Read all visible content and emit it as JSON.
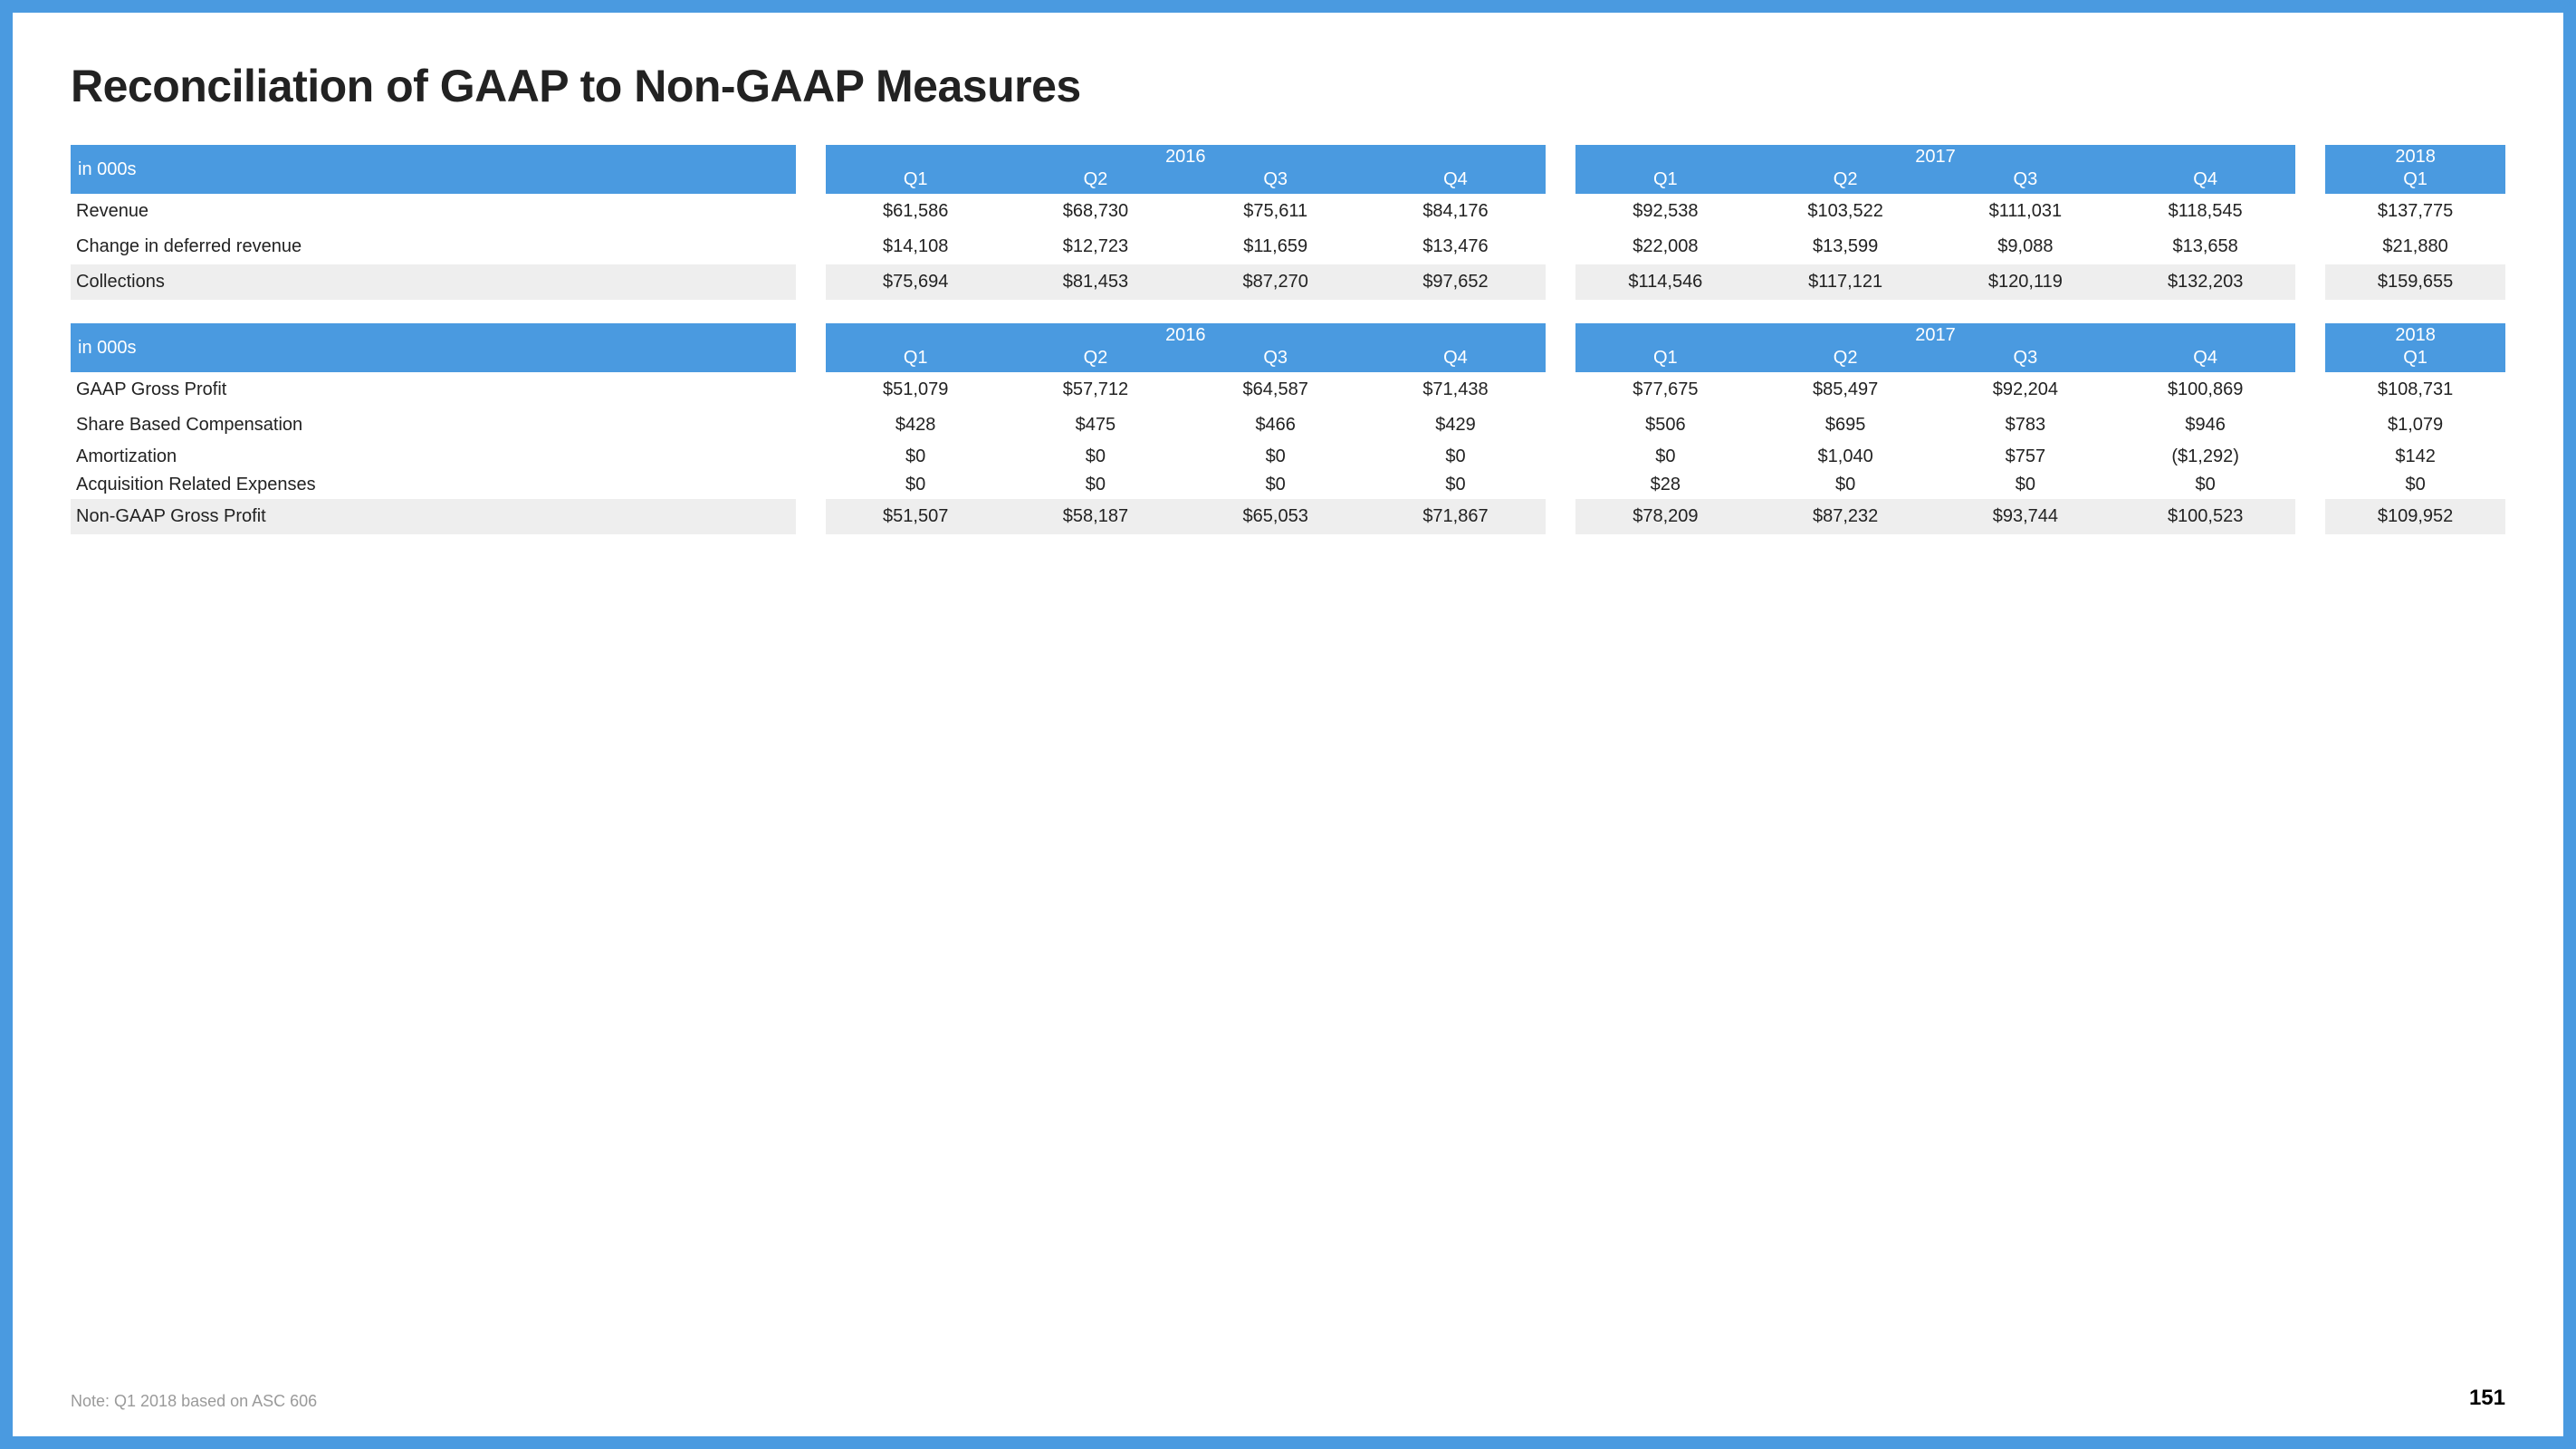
{
  "title": "Reconciliation of GAAP to Non-GAAP Measures",
  "colors": {
    "frame": "#4a9ae0",
    "header_bg": "#4a9ae0",
    "header_text": "#ffffff",
    "row_text": "#222222",
    "shade_bg": "#eeeeee",
    "note_text": "#9a9a9a",
    "page_bg": "#ffffff"
  },
  "typography": {
    "title_fontsize_pt": 38,
    "header_fontsize_pt": 15,
    "body_fontsize_pt": 15,
    "note_fontsize_pt": 13,
    "pagenum_fontsize_pt": 18,
    "title_weight": 700
  },
  "year_groups": [
    {
      "label": "2016",
      "quarters": [
        "Q1",
        "Q2",
        "Q3",
        "Q4"
      ]
    },
    {
      "label": "2017",
      "quarters": [
        "Q1",
        "Q2",
        "Q3",
        "Q4"
      ]
    },
    {
      "label": "2018",
      "quarters": [
        "Q1"
      ]
    }
  ],
  "table1": {
    "unit_label": "in 000s",
    "rows": [
      {
        "label": "Revenue",
        "shaded": false,
        "values": [
          "$61,586",
          "$68,730",
          "$75,611",
          "$84,176",
          "$92,538",
          "$103,522",
          "$111,031",
          "$118,545",
          "$137,775"
        ]
      },
      {
        "label": "Change in deferred revenue",
        "shaded": false,
        "values": [
          "$14,108",
          "$12,723",
          "$11,659",
          "$13,476",
          "$22,008",
          "$13,599",
          "$9,088",
          "$13,658",
          "$21,880"
        ]
      },
      {
        "label": "Collections",
        "shaded": true,
        "values": [
          "$75,694",
          "$81,453",
          "$87,270",
          "$97,652",
          "$114,546",
          "$117,121",
          "$120,119",
          "$132,203",
          "$159,655"
        ]
      }
    ]
  },
  "table2": {
    "unit_label": "in 000s",
    "rows": [
      {
        "label": "GAAP Gross Profit",
        "shaded": false,
        "tight": false,
        "values": [
          "$51,079",
          "$57,712",
          "$64,587",
          "$71,438",
          "$77,675",
          "$85,497",
          "$92,204",
          "$100,869",
          "$108,731"
        ]
      },
      {
        "label": "Share Based Compensation",
        "shaded": false,
        "tight": false,
        "values": [
          "$428",
          "$475",
          "$466",
          "$429",
          "$506",
          "$695",
          "$783",
          "$946",
          "$1,079"
        ]
      },
      {
        "label": "Amortization",
        "shaded": false,
        "tight": true,
        "values": [
          "$0",
          "$0",
          "$0",
          "$0",
          "$0",
          "$1,040",
          "$757",
          "($1,292)",
          "$142"
        ]
      },
      {
        "label": "Acquisition Related Expenses",
        "shaded": false,
        "tight": true,
        "values": [
          "$0",
          "$0",
          "$0",
          "$0",
          "$28",
          "$0",
          "$0",
          "$0",
          "$0"
        ]
      },
      {
        "label": "Non-GAAP Gross Profit",
        "shaded": true,
        "tight": false,
        "values": [
          "$51,507",
          "$58,187",
          "$65,053",
          "$71,867",
          "$78,209",
          "$87,232",
          "$93,744",
          "$100,523",
          "$109,952"
        ]
      }
    ]
  },
  "footnote": "Note: Q1 2018 based on ASC 606",
  "page_number": "151"
}
